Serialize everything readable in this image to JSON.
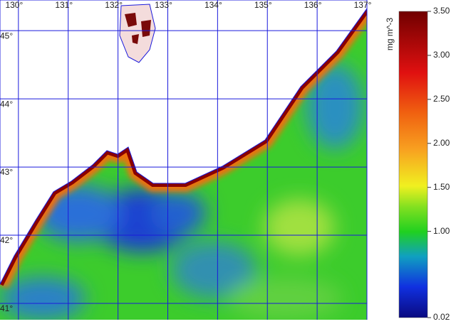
{
  "map": {
    "lon_range": [
      129.63,
      137.0
    ],
    "lat_range": [
      40.76,
      45.45
    ],
    "lon_ticks": [
      {
        "value": 130,
        "label": "130°"
      },
      {
        "value": 131,
        "label": "131°"
      },
      {
        "value": 132,
        "label": "132°"
      },
      {
        "value": 133,
        "label": "133°"
      },
      {
        "value": 134,
        "label": "134°"
      },
      {
        "value": 135,
        "label": "135°"
      },
      {
        "value": 136,
        "label": "136°"
      },
      {
        "value": 137,
        "label": "137°"
      }
    ],
    "lat_ticks": [
      {
        "value": 41,
        "label": "41°"
      },
      {
        "value": 42,
        "label": "42°"
      },
      {
        "value": 43,
        "label": "43°"
      },
      {
        "value": 44,
        "label": "44°"
      },
      {
        "value": 45,
        "label": "45°"
      }
    ],
    "grid_color": "#1a1adc"
  },
  "colorbar": {
    "label": "mg m^-3",
    "range": [
      0.02,
      3.5
    ],
    "ticks": [
      0.02,
      {
        "value": 1.0,
        "label": "1.00"
      },
      {
        "value": 1.5,
        "label": "1.50"
      },
      {
        "value": 2.0,
        "label": "2.00"
      },
      {
        "value": 2.5,
        "label": "2.50"
      },
      {
        "value": 3.0,
        "label": "3.00"
      },
      {
        "value": 3.5,
        "label": "3.50"
      }
    ]
  }
}
